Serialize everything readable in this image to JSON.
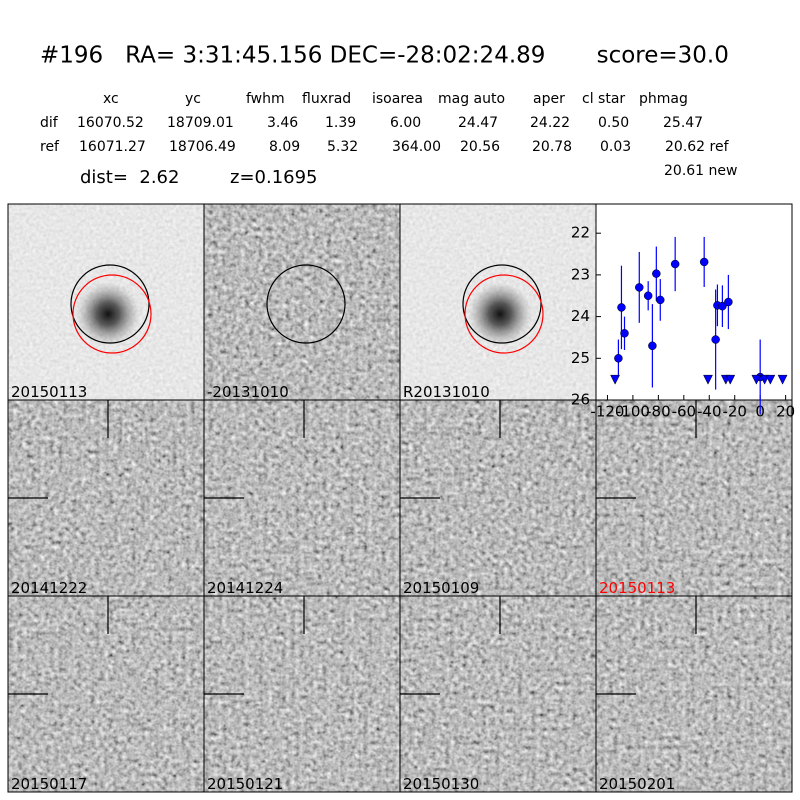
{
  "header": {
    "title": "#196   RA= 3:31:45.156 DEC=-28:02:24.89       score=30.0"
  },
  "table": {
    "columns": [
      "xc",
      "yc",
      "fwhm",
      "fluxrad",
      "isoarea",
      "mag auto",
      "aper",
      "cl star",
      "phmag"
    ],
    "rows": [
      [
        "dif",
        "16070.52",
        "18709.01",
        "3.46",
        "1.39",
        "6.00",
        "24.47",
        "24.22",
        "0.50",
        "25.47"
      ],
      [
        "ref",
        "16071.27",
        "18706.49",
        "8.09",
        "5.32",
        "364.00",
        "20.56",
        "20.78",
        "0.03",
        "20.62 ref"
      ]
    ],
    "extra": "20.61 new"
  },
  "info": {
    "dist": "dist=  2.62",
    "z": "z=0.1695"
  },
  "panels": [
    {
      "label": "20150113",
      "color": "#000000"
    },
    {
      "label": "-20131010",
      "color": "#000000"
    },
    {
      "label": "R20131010",
      "color": "#000000"
    },
    {
      "label": "20141222",
      "color": "#000000"
    },
    {
      "label": "20141224",
      "color": "#000000"
    },
    {
      "label": "20150109",
      "color": "#000000"
    },
    {
      "label": "20150113",
      "color": "#ff0000"
    },
    {
      "label": "20150117",
      "color": "#000000"
    },
    {
      "label": "20150121",
      "color": "#000000"
    },
    {
      "label": "20150130",
      "color": "#000000"
    },
    {
      "label": "20150201",
      "color": "#000000"
    }
  ],
  "chart_data": {
    "type": "scatter",
    "xlim": [
      -129,
      25
    ],
    "ylim": [
      26,
      21.3
    ],
    "xticks": [
      -120,
      -100,
      -80,
      -60,
      -40,
      -20,
      0,
      20
    ],
    "yticks": [
      22,
      23,
      24,
      25,
      26
    ],
    "series": [
      {
        "color": "#0000ff",
        "marker": "o",
        "x": [
          -111.4,
          -109,
          -106.6,
          -95,
          -88,
          -84.7,
          -81.6,
          -78.5,
          -66.8,
          -44,
          -35,
          -33.6,
          -29.7,
          -25,
          0
        ],
        "values": [
          25.0,
          23.78,
          24.4,
          23.3,
          23.5,
          24.7,
          22.97,
          23.6,
          22.74,
          22.69,
          24.55,
          23.73,
          23.75,
          23.65,
          25.45
        ],
        "errors": [
          0.45,
          1.0,
          0.4,
          0.85,
          0.35,
          1.0,
          0.65,
          0.5,
          0.65,
          0.6,
          1.2,
          0.5,
          0.5,
          0.65,
          0.9
        ]
      },
      {
        "color": "#0000ff",
        "marker": "v",
        "x": [
          -114,
          -41,
          -27,
          -23.5,
          -3,
          3.5,
          8,
          17.6
        ],
        "values": [
          25.5,
          25.5,
          25.5,
          25.5,
          25.5,
          25.5,
          25.5,
          25.5
        ]
      }
    ]
  }
}
